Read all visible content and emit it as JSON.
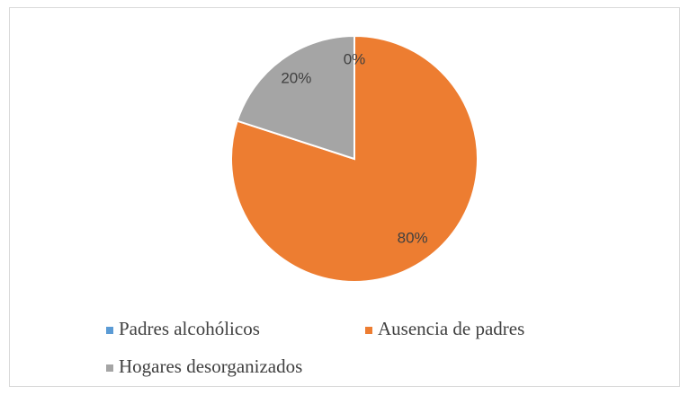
{
  "chart_data": {
    "type": "pie",
    "categories": [
      "Padres alcohólicos",
      "Ausencia de padres",
      "Hogares desorganizados"
    ],
    "values": [
      0,
      80,
      20
    ],
    "value_labels": [
      "0%",
      "80%",
      "20%"
    ],
    "colors": [
      "#5b9bd5",
      "#ed7d31",
      "#a5a5a5"
    ],
    "legend": "bottom"
  }
}
